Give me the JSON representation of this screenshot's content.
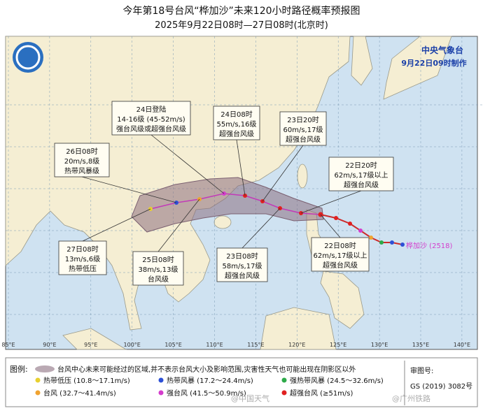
{
  "header": {
    "title": "今年第18号台风“桦加沙”未来120小时路径概率预报图",
    "subtitle": "2025年9月22日08时—27日08时(北京时)"
  },
  "agency": {
    "name": "中央气象台",
    "issued": "9月22日09时制作"
  },
  "callouts": [
    {
      "lines": [
        "24日登陆",
        "14-16级 (45-52m/s)",
        "强台风级或超强台风级"
      ]
    },
    {
      "lines": [
        "24日08时",
        "55m/s,16级",
        "超强台风级"
      ]
    },
    {
      "lines": [
        "23日20时",
        "60m/s,17级",
        "超强台风级"
      ]
    },
    {
      "lines": [
        "22日20时",
        "62m/s,17级以上",
        "超强台风级"
      ]
    },
    {
      "lines": [
        "26日08时",
        "20m/s,8级",
        "热带风暴级"
      ]
    },
    {
      "lines": [
        "27日08时",
        "13m/s,6级",
        "热带低压"
      ]
    },
    {
      "lines": [
        "25日08时",
        "38m/s,13级",
        "台风级"
      ]
    },
    {
      "lines": [
        "23日08时",
        "58m/s,17级",
        "超强台风级"
      ]
    },
    {
      "lines": [
        "22日08时",
        "62m/s,17级以上",
        "超强台风级"
      ]
    }
  ],
  "storm_label": "桦加沙 (2518)",
  "longitudes": [
    "85°E",
    "90°E",
    "95°E",
    "100°E",
    "105°E",
    "110°E",
    "115°E",
    "120°E",
    "125°E",
    "130°E",
    "135°E",
    "140°E"
  ],
  "legend": {
    "heading": "图例:",
    "area_note": "台风中心未来可能经过的区域,并不表示台风大小及影响范围,灾害性天气也可能出现在阴影区以外",
    "items": [
      "热带低压 (10.8～17.1m/s)",
      "热带风暴 (17.2～24.4m/s)",
      "强热带风暴 (24.5～32.6m/s)",
      "台风 (32.7～41.4m/s)",
      "强台风 (41.5～50.9m/s)",
      "超强台风 (≥51m/s)"
    ]
  },
  "review": {
    "label": "审图号:",
    "number": "GS (2019) 3082号"
  },
  "watermarks": [
    "@中国天气",
    "@广州铁路"
  ]
}
